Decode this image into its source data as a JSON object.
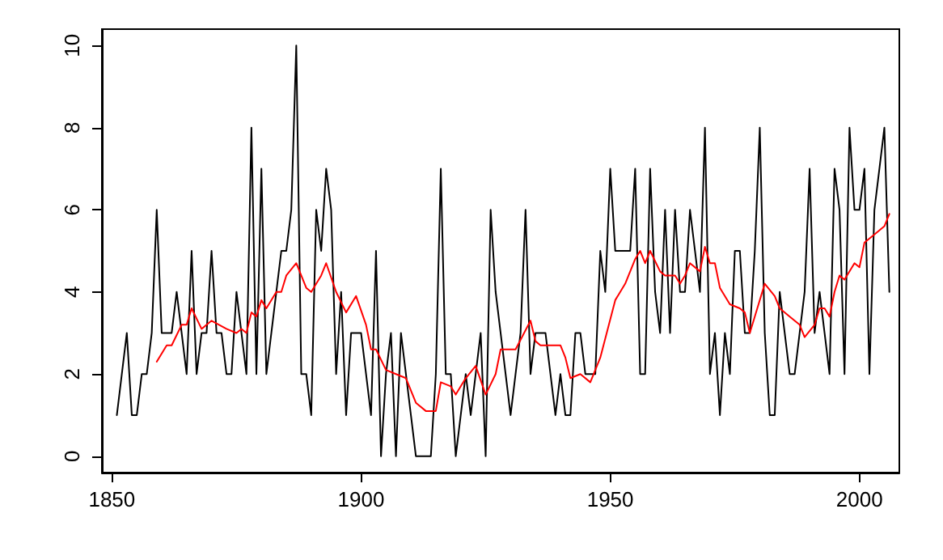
{
  "chart_data": {
    "type": "line",
    "xlim": [
      1848,
      2008
    ],
    "xticks": [
      1850,
      1900,
      1950,
      2000
    ],
    "ylim": [
      -0.4,
      10.4
    ],
    "yticks": [
      0,
      2,
      4,
      6,
      8,
      10
    ],
    "grid": false,
    "marker": "none",
    "line_style": "solid",
    "series": [
      {
        "color": "#000000",
        "x": [
          1851,
          1852,
          1853,
          1854,
          1855,
          1856,
          1857,
          1858,
          1859,
          1860,
          1861,
          1862,
          1863,
          1864,
          1865,
          1866,
          1867,
          1868,
          1869,
          1870,
          1871,
          1872,
          1873,
          1874,
          1875,
          1876,
          1877,
          1878,
          1879,
          1880,
          1881,
          1882,
          1883,
          1884,
          1885,
          1886,
          1887,
          1888,
          1889,
          1890,
          1891,
          1892,
          1893,
          1894,
          1895,
          1896,
          1897,
          1898,
          1899,
          1900,
          1901,
          1902,
          1903,
          1904,
          1905,
          1906,
          1907,
          1908,
          1909,
          1910,
          1911,
          1912,
          1913,
          1914,
          1915,
          1916,
          1917,
          1918,
          1919,
          1920,
          1921,
          1922,
          1923,
          1924,
          1925,
          1926,
          1927,
          1928,
          1929,
          1930,
          1931,
          1932,
          1933,
          1934,
          1935,
          1936,
          1937,
          1938,
          1939,
          1940,
          1941,
          1942,
          1943,
          1944,
          1945,
          1946,
          1947,
          1948,
          1949,
          1950,
          1951,
          1952,
          1953,
          1954,
          1955,
          1956,
          1957,
          1958,
          1959,
          1960,
          1961,
          1962,
          1963,
          1964,
          1965,
          1966,
          1967,
          1968,
          1969,
          1970,
          1971,
          1972,
          1973,
          1974,
          1975,
          1976,
          1977,
          1978,
          1979,
          1980,
          1981,
          1982,
          1983,
          1984,
          1985,
          1986,
          1987,
          1988,
          1989,
          1990,
          1991,
          1992,
          1993,
          1994,
          1995,
          1996,
          1997,
          1998,
          1999,
          2000,
          2001,
          2002,
          2003,
          2004,
          2005,
          2006
        ],
        "values": [
          1,
          2,
          3,
          1,
          1,
          2,
          2,
          3,
          6,
          3,
          3,
          3,
          4,
          3,
          2,
          5,
          2,
          3,
          3,
          5,
          3,
          3,
          2,
          2,
          4,
          3,
          2,
          8,
          2,
          7,
          2,
          3,
          4,
          5,
          5,
          6,
          10,
          2,
          2,
          1,
          6,
          5,
          7,
          6,
          2,
          4,
          1,
          3,
          3,
          3,
          2,
          1,
          5,
          0,
          2,
          3,
          0,
          3,
          2,
          1,
          0,
          0,
          0,
          0,
          2,
          7,
          2,
          2,
          0,
          1,
          2,
          1,
          2,
          3,
          0,
          6,
          4,
          3,
          2,
          1,
          2,
          3,
          6,
          2,
          3,
          3,
          3,
          2,
          1,
          2,
          1,
          1,
          3,
          3,
          2,
          2,
          2,
          5,
          4,
          7,
          5,
          5,
          5,
          5,
          7,
          2,
          2,
          7,
          4,
          3,
          6,
          3,
          6,
          4,
          4,
          6,
          5,
          4,
          8,
          2,
          3,
          1,
          3,
          2,
          5,
          5,
          3,
          3,
          5,
          8,
          3,
          1,
          1,
          4,
          3,
          2,
          2,
          3,
          4,
          7,
          3,
          4,
          3,
          2,
          7,
          6,
          2,
          8,
          6,
          6,
          7,
          2,
          6,
          7,
          8,
          4
        ]
      },
      {
        "color": "#ff0000",
        "x": [
          1859,
          1861,
          1862,
          1864,
          1865,
          1866,
          1868,
          1870,
          1873,
          1875,
          1876,
          1877,
          1878,
          1879,
          1880,
          1881,
          1883,
          1884,
          1885,
          1887,
          1889,
          1890,
          1892,
          1893,
          1895,
          1897,
          1899,
          1901,
          1902,
          1903,
          1905,
          1907,
          1909,
          1911,
          1913,
          1915,
          1916,
          1918,
          1919,
          1921,
          1923,
          1925,
          1927,
          1928,
          1931,
          1934,
          1935,
          1936,
          1938,
          1940,
          1941,
          1942,
          1944,
          1946,
          1948,
          1951,
          1953,
          1955,
          1956,
          1957,
          1958,
          1960,
          1961,
          1963,
          1964,
          1965,
          1966,
          1968,
          1969,
          1970,
          1971,
          1972,
          1974,
          1976,
          1977,
          1978,
          1979,
          1981,
          1983,
          1984,
          1986,
          1988,
          1989,
          1991,
          1992,
          1993,
          1994,
          1995,
          1996,
          1997,
          1999,
          2000,
          2001,
          2002,
          2003,
          2005,
          2006
        ],
        "values": [
          2.3,
          2.7,
          2.7,
          3.2,
          3.2,
          3.6,
          3.1,
          3.3,
          3.1,
          3.0,
          3.1,
          3.0,
          3.5,
          3.4,
          3.8,
          3.6,
          4.0,
          4.0,
          4.4,
          4.7,
          4.1,
          4.0,
          4.4,
          4.7,
          4.0,
          3.5,
          3.9,
          3.2,
          2.6,
          2.6,
          2.1,
          2.0,
          1.9,
          1.3,
          1.1,
          1.1,
          1.8,
          1.7,
          1.5,
          1.9,
          2.2,
          1.5,
          2.0,
          2.6,
          2.6,
          3.3,
          2.8,
          2.7,
          2.7,
          2.7,
          2.4,
          1.9,
          2.0,
          1.8,
          2.4,
          3.8,
          4.2,
          4.8,
          5.0,
          4.7,
          5.0,
          4.5,
          4.4,
          4.4,
          4.2,
          4.4,
          4.7,
          4.5,
          5.1,
          4.7,
          4.7,
          4.1,
          3.7,
          3.6,
          3.5,
          3.0,
          3.4,
          4.2,
          3.9,
          3.6,
          3.4,
          3.2,
          2.9,
          3.2,
          3.6,
          3.6,
          3.4,
          4.0,
          4.4,
          4.3,
          4.7,
          4.6,
          5.2,
          5.3,
          5.4,
          5.6,
          5.9
        ]
      }
    ]
  }
}
